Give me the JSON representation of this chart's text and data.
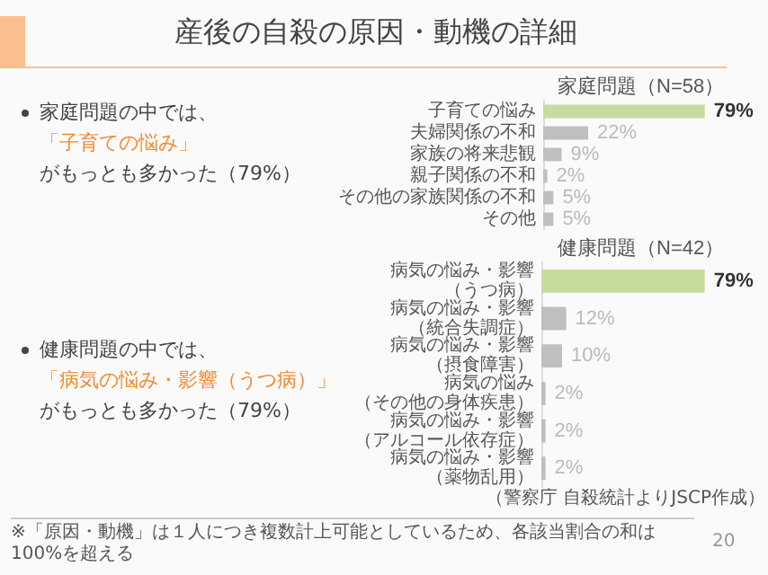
{
  "chart_data": [
    {
      "type": "other",
      "title": "産後の自殺の原因・動機の詳細",
      "annotations": [
        "家庭問題の中では、",
        "「子育ての悩み」",
        "がもっとも多かった（79%）",
        "健康問題の中では、",
        "「病気の悩み・影響（うつ病）」",
        "がもっとも多かった（79%）",
        "※「原因・動機」は１人につき複数計上可能としているため、各該当割合の和は100%を超える",
        "20"
      ]
    },
    {
      "type": "bar",
      "orientation": "horizontal",
      "title": "家庭問題（N=58）",
      "categories": [
        "子育ての悩み",
        "夫婦関係の不和",
        "家族の将来悲観",
        "親子関係の不和",
        "その他の家族関係の不和",
        "その他"
      ],
      "values": [
        79,
        22,
        9,
        2,
        5,
        5
      ],
      "colors": [
        "#c5dc9f",
        "#bfbfbf",
        "#bfbfbf",
        "#bfbfbf",
        "#bfbfbf",
        "#bfbfbf"
      ],
      "value_labels": [
        "79%",
        "22%",
        "9%",
        "2%",
        "5%",
        "5%"
      ]
    },
    {
      "type": "bar",
      "orientation": "horizontal",
      "title": "健康問題（N=42）",
      "categories": [
        "病気の悩み・影響（うつ病）",
        "病気の悩み・影響（統合失調症）",
        "病気の悩み・影響（摂食障害）",
        "病気の悩み（その他の身体疾患）",
        "病気の悩み・影響（アルコール依存症）",
        "病気の悩み・影響（薬物乱用）"
      ],
      "values": [
        79,
        12,
        10,
        2,
        2,
        2
      ],
      "colors": [
        "#c5dc9f",
        "#bfbfbf",
        "#bfbfbf",
        "#bfbfbf",
        "#bfbfbf",
        "#bfbfbf"
      ],
      "value_labels": [
        "79%",
        "12%",
        "10%",
        "2%",
        "2%",
        "2%"
      ],
      "annotations": [
        "（警察庁 自殺統計よりJSCP作成）"
      ]
    }
  ]
}
